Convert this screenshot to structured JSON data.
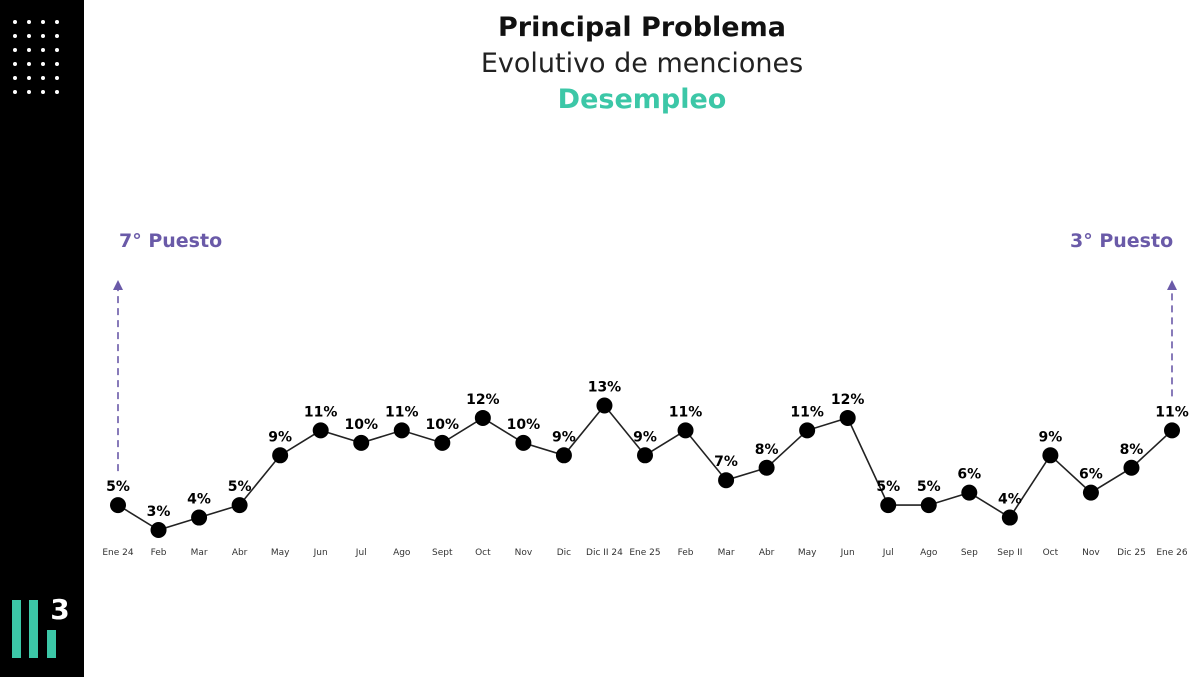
{
  "header": {
    "title": "Principal Problema",
    "subtitle": "Evolutivo de menciones",
    "topic": "Desempleo"
  },
  "annotations": {
    "start_rank": "7° Puesto",
    "end_rank": "3° Puesto",
    "accent_color": "#6a5aa8"
  },
  "logo": {
    "digit": "3",
    "accent_color": "#3cc7a7"
  },
  "chart_data": {
    "type": "line",
    "categories": [
      "Ene 24",
      "Feb",
      "Mar",
      "Abr",
      "May",
      "Jun",
      "Jul",
      "Ago",
      "Sept",
      "Oct",
      "Nov",
      "Dic",
      "Dic II 24",
      "Ene 25",
      "Feb",
      "Mar",
      "Abr",
      "May",
      "Jun",
      "Jul",
      "Ago",
      "Sep",
      "Sep II",
      "Oct",
      "Nov",
      "Dic 25",
      "Ene 26"
    ],
    "values": [
      5,
      3,
      4,
      5,
      9,
      11,
      10,
      11,
      10,
      12,
      10,
      9,
      13,
      9,
      11,
      7,
      8,
      11,
      12,
      5,
      5,
      6,
      4,
      9,
      6,
      8,
      11
    ],
    "labels": [
      "5%",
      "3%",
      "4%",
      "5%",
      "9%",
      "11%",
      "10%",
      "11%",
      "10%",
      "12%",
      "10%",
      "9%",
      "13%",
      "9%",
      "11%",
      "7%",
      "8%",
      "11%",
      "12%",
      "5%",
      "5%",
      "6%",
      "4%",
      "9%",
      "6%",
      "8%",
      "11%"
    ],
    "unit": "%",
    "title": "Principal Problema",
    "subtitle": "Evolutivo de menciones",
    "series_name": "Desempleo",
    "grid": false,
    "legend": "none",
    "colors": {
      "line": "#222222",
      "marker": "#000000",
      "label": "#000000",
      "tick": "#333333"
    }
  }
}
